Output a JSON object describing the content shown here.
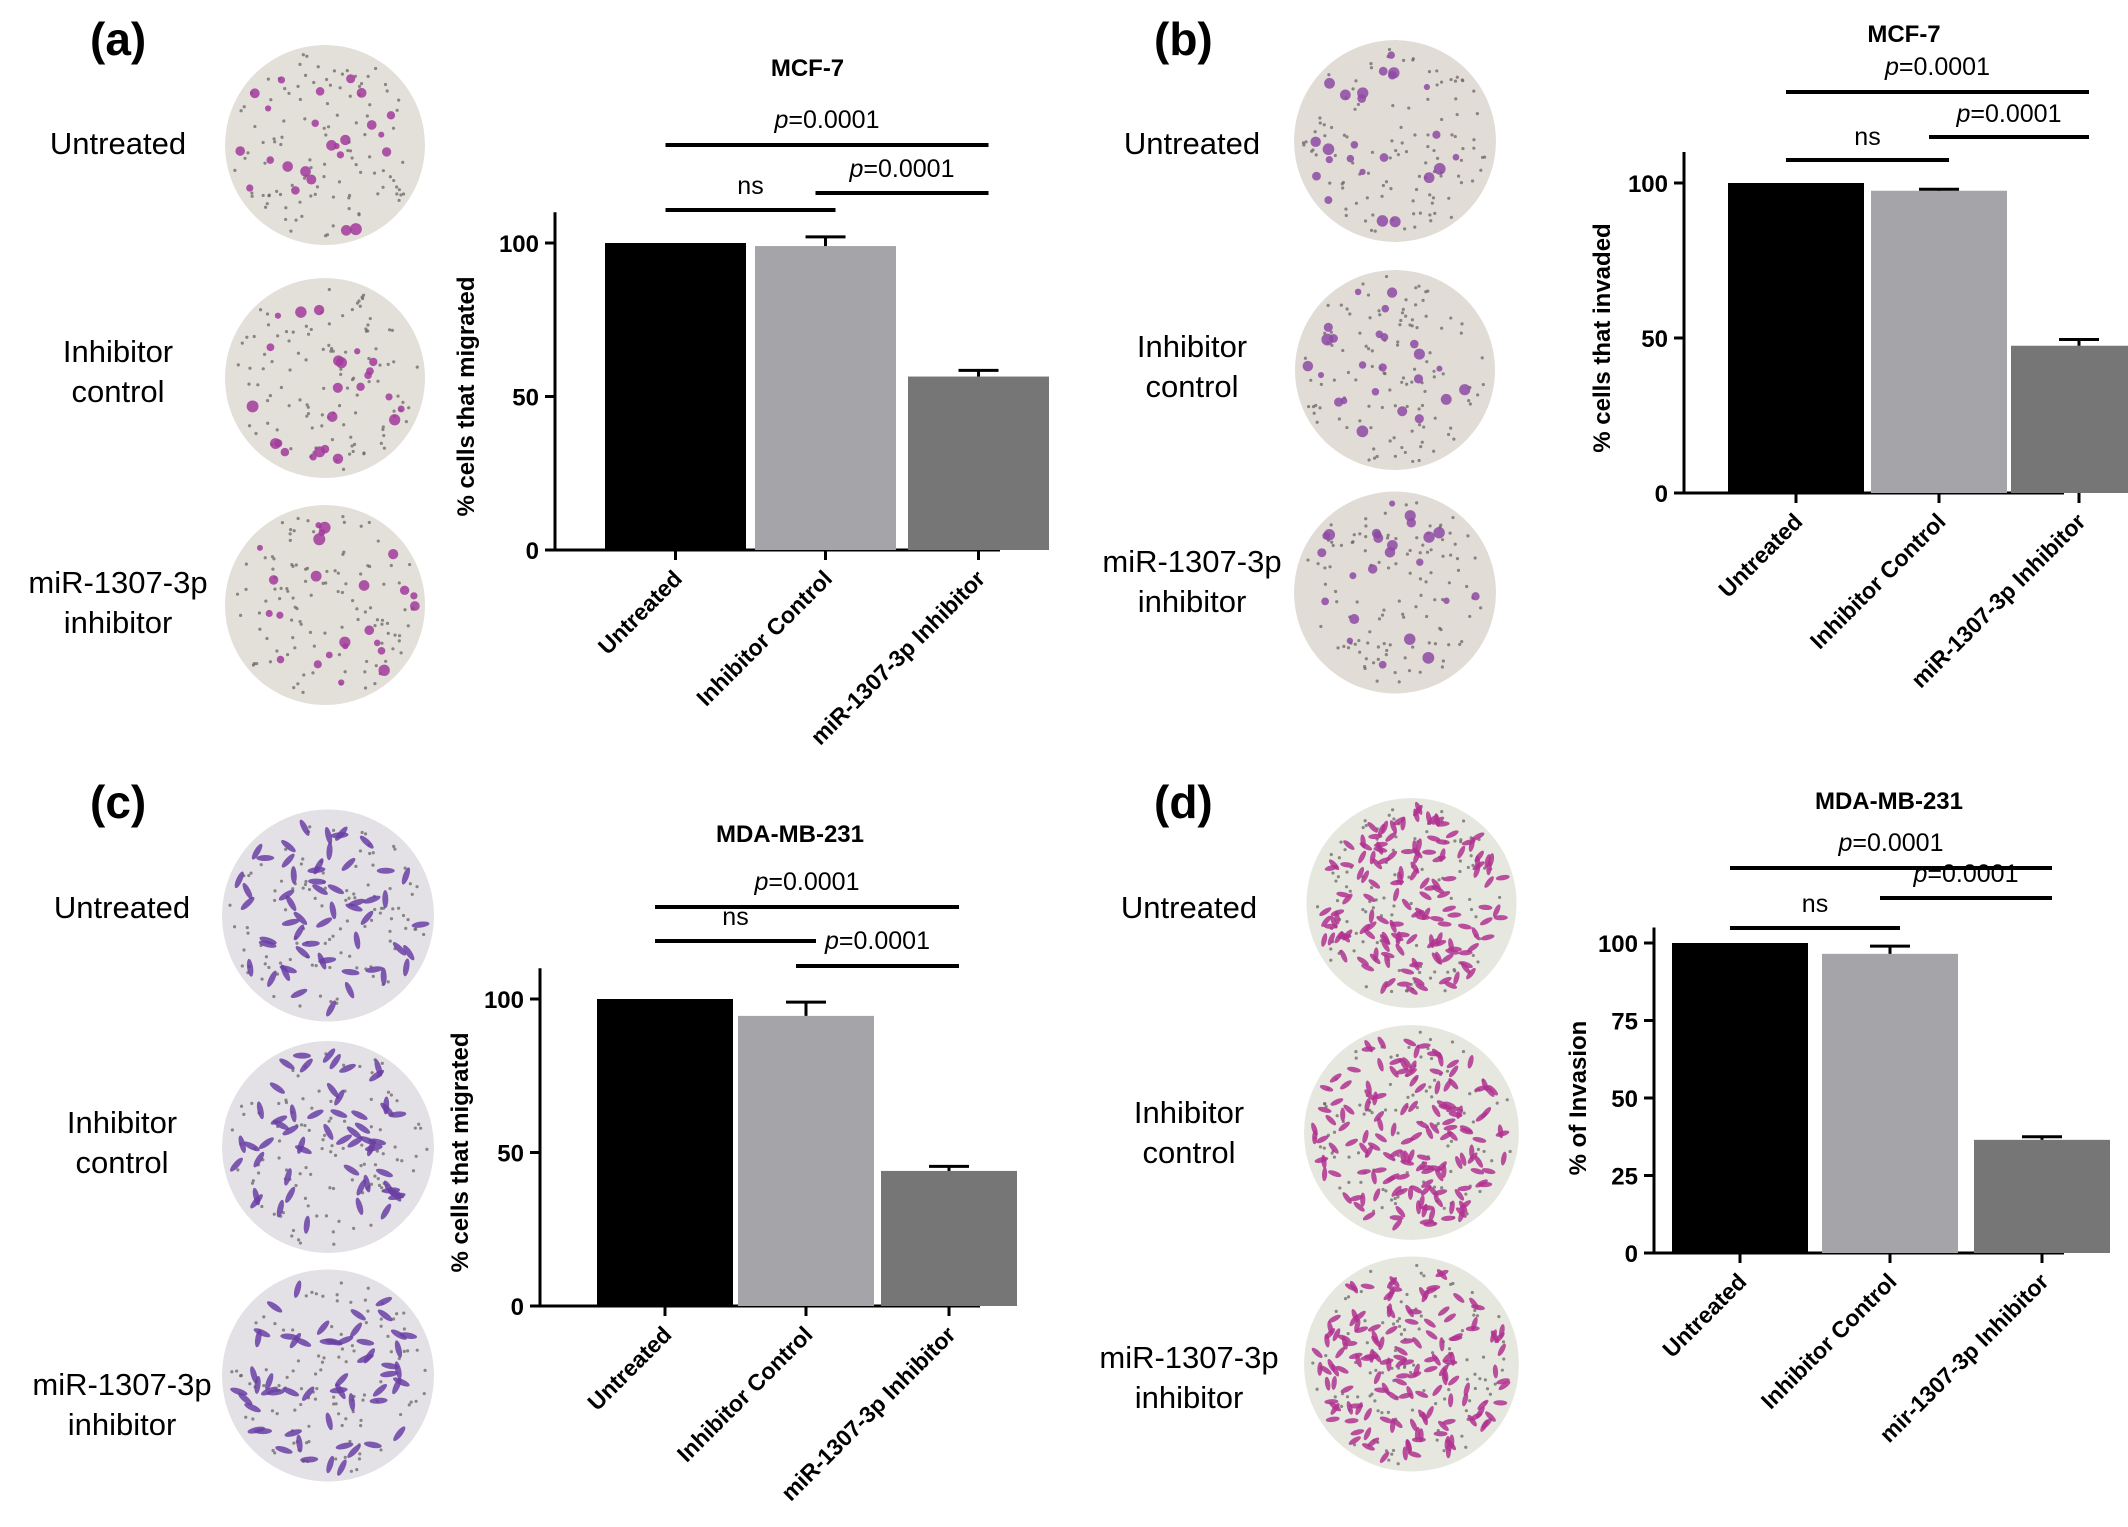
{
  "row_labels": [
    "Untreated",
    "Inhibitor\ncontrol",
    "miR-1307-3p\ninhibitor"
  ],
  "panels": [
    {
      "letter": "(a)",
      "well_colors": {
        "background": "#e3dfd9",
        "cell": "#a23b9c"
      },
      "cell_style": "sparse"
    },
    {
      "letter": "(b)",
      "well_colors": {
        "background": "#e1dcd6",
        "cell": "#8d4aa4"
      },
      "cell_style": "sparse"
    },
    {
      "letter": "(c)",
      "well_colors": {
        "background": "#e3e0e6",
        "cell": "#6a3fa3"
      },
      "cell_style": "elongated"
    },
    {
      "letter": "(d)",
      "well_colors": {
        "background": "#e6e8e0",
        "cell": "#b0338f"
      },
      "cell_style": "dense"
    }
  ],
  "chart_data": [
    {
      "type": "bar",
      "title": "MCF-7",
      "ylabel": "%  cells that migrated",
      "xlabel": "",
      "categories": [
        "Untreated",
        "Inhibitor Control",
        "miR-1307-3p Inhibitor"
      ],
      "values": [
        100,
        99,
        56.5
      ],
      "errors": [
        0,
        3,
        2
      ],
      "colors": [
        "#000000",
        "#a4a4a9",
        "#767676"
      ],
      "ylim": [
        0,
        110
      ],
      "yticks": [
        0,
        50,
        100
      ],
      "significance": [
        {
          "from": 0,
          "to": 1,
          "label": "ns",
          "italic_p": false
        },
        {
          "from": 1,
          "to": 2,
          "label": "=0.0001",
          "italic_p": true
        },
        {
          "from": 0,
          "to": 2,
          "label": "=0.0001",
          "italic_p": true
        }
      ]
    },
    {
      "type": "bar",
      "title": "MCF-7",
      "ylabel": "% cells that invaded",
      "xlabel": "",
      "categories": [
        "Untreated",
        "Inhibitor Control",
        "miR-1307-3p Inhibitor"
      ],
      "values": [
        100,
        97.5,
        47.5
      ],
      "errors": [
        0,
        0.5,
        2
      ],
      "colors": [
        "#000000",
        "#a4a4a9",
        "#767676"
      ],
      "ylim": [
        0,
        110
      ],
      "yticks": [
        0,
        50,
        100
      ],
      "significance": [
        {
          "from": 0,
          "to": 1,
          "label": "ns",
          "italic_p": false
        },
        {
          "from": 1,
          "to": 2,
          "label": "=0.0001",
          "italic_p": true
        },
        {
          "from": 0,
          "to": 2,
          "label": "=0.0001",
          "italic_p": true
        }
      ]
    },
    {
      "type": "bar",
      "title": "MDA-MB-231",
      "ylabel": "%  cells that migrated",
      "xlabel": "",
      "categories": [
        "Untreated",
        "Inhibitor Control",
        "miR-1307-3p Inhibitor"
      ],
      "values": [
        100,
        94.5,
        44
      ],
      "errors": [
        0,
        4.5,
        1.5
      ],
      "colors": [
        "#000000",
        "#a4a4a9",
        "#767676"
      ],
      "ylim": [
        0,
        110
      ],
      "yticks": [
        0,
        50,
        100
      ],
      "significance": [
        {
          "from": 0,
          "to": 1,
          "label": "ns",
          "italic_p": false
        },
        {
          "from": 1,
          "to": 2,
          "label": "=0.0001",
          "italic_p": true
        },
        {
          "from": 0,
          "to": 2,
          "label": "=0.0001",
          "italic_p": true
        }
      ]
    },
    {
      "type": "bar",
      "title": "MDA-MB-231",
      "ylabel": "% of Invasion",
      "xlabel": "",
      "categories": [
        "Untreated",
        "Inhibitor Control",
        "mir-1307-3p Inhibitor"
      ],
      "values": [
        100,
        96.5,
        36.5
      ],
      "errors": [
        0,
        2.5,
        1
      ],
      "colors": [
        "#000000",
        "#a4a4a9",
        "#767676"
      ],
      "ylim": [
        0,
        105
      ],
      "yticks": [
        0,
        25,
        50,
        75,
        100
      ],
      "significance": [
        {
          "from": 0,
          "to": 1,
          "label": "ns",
          "italic_p": false
        },
        {
          "from": 1,
          "to": 2,
          "label": "=0.0001",
          "italic_p": true
        },
        {
          "from": 0,
          "to": 2,
          "label": "=0.0001",
          "italic_p": true
        }
      ]
    }
  ]
}
